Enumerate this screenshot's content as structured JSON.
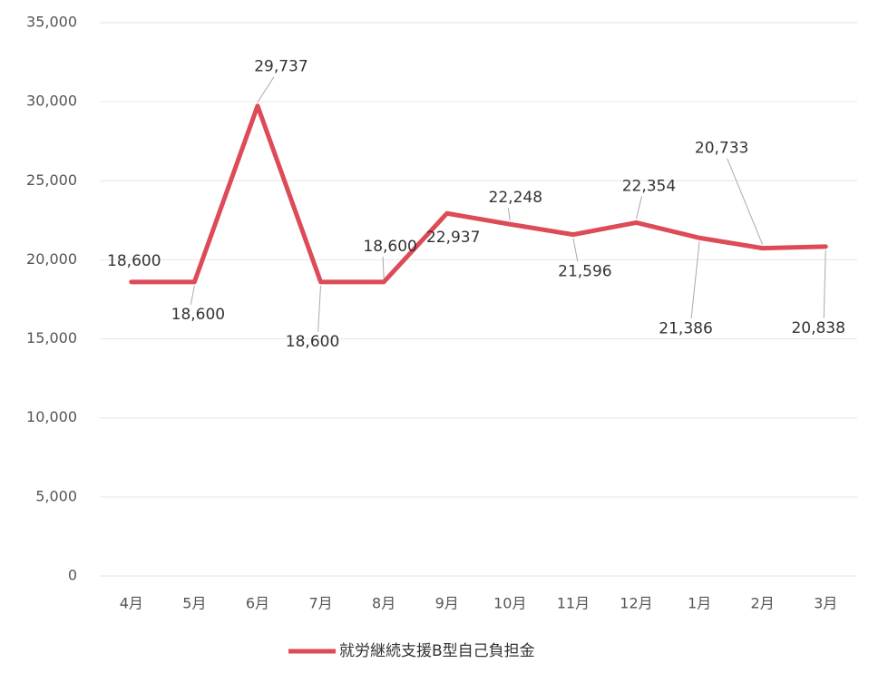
{
  "chart_data": {
    "type": "line",
    "categories": [
      "4月",
      "5月",
      "6月",
      "7月",
      "8月",
      "9月",
      "10月",
      "11月",
      "12月",
      "1月",
      "2月",
      "3月"
    ],
    "series": [
      {
        "name": "就労継続支援B型自己負担金",
        "color": "#dc4b57",
        "values": [
          18600,
          18600,
          29737,
          18600,
          18600,
          22937,
          22248,
          21596,
          22354,
          21386,
          20733,
          20838
        ],
        "value_labels": [
          "18,600",
          "18,600",
          "29,737",
          "18,600",
          "18,600",
          "22,937",
          "22,248",
          "21,596",
          "22,354",
          "21,386",
          "20,733",
          "20,838"
        ]
      }
    ],
    "ylim": [
      0,
      35000
    ],
    "yticks": [
      0,
      {
        "value": 5000,
        "label": "5,000"
      },
      {
        "value": 10000,
        "label": "10,000"
      },
      {
        "value": 15000,
        "label": "15,000"
      },
      {
        "value": 20000,
        "label": "20,000"
      },
      {
        "value": 25000,
        "label": "25,000"
      },
      {
        "value": 30000,
        "label": "30,000"
      },
      {
        "value": 35000,
        "label": "35,000"
      }
    ],
    "grid": true,
    "legend": "bottom"
  }
}
